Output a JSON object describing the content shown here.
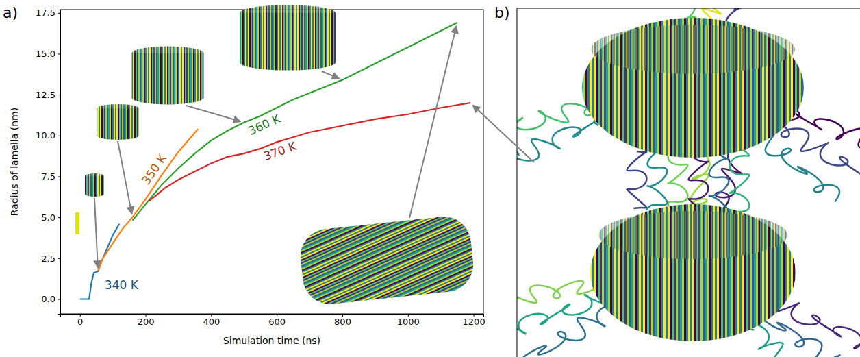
{
  "chart_data": {
    "type": "line",
    "panel_labels": [
      "a)",
      "b)"
    ],
    "x_label": "Simulation time (ns)",
    "y_label": "Radius of lamella (nm)",
    "xlim": [
      -60,
      1230
    ],
    "ylim": [
      -0.9,
      17.7
    ],
    "xticks": [
      0,
      200,
      400,
      600,
      800,
      1000,
      1200
    ],
    "yticks": [
      {
        "value": 0,
        "label": "0.0"
      },
      2.5,
      {
        "value": 5,
        "label": "5.0"
      },
      7.5,
      {
        "value": 10,
        "label": "10.0"
      },
      12.5,
      {
        "value": 15,
        "label": "15.0"
      },
      17.5
    ],
    "grid": false,
    "series": [
      {
        "name": "340 K",
        "color": "#1f77b4",
        "x": [
          0,
          28,
          35,
          42,
          55,
          70,
          85,
          100,
          120
        ],
        "values": [
          0,
          0,
          1.0,
          1.6,
          1.7,
          2.5,
          3.2,
          3.9,
          4.6
        ]
      },
      {
        "name": "350 K",
        "color": "#ff7f0e",
        "x": [
          55,
          70,
          100,
          130,
          160,
          200,
          250,
          300,
          360
        ],
        "values": [
          1.7,
          2.5,
          3.4,
          4.3,
          5.0,
          6.1,
          7.6,
          9.0,
          10.4
        ]
      },
      {
        "name": "360 K",
        "color": "#2ca02c",
        "x": [
          160,
          200,
          250,
          300,
          350,
          400,
          450,
          500,
          550,
          600,
          650,
          700,
          750,
          800,
          850,
          900,
          950,
          1000,
          1050,
          1100,
          1150
        ],
        "values": [
          4.8,
          5.8,
          7.0,
          8.0,
          8.9,
          9.7,
          10.3,
          10.8,
          11.2,
          11.7,
          12.2,
          12.6,
          13.0,
          13.4,
          13.9,
          14.4,
          14.9,
          15.4,
          15.9,
          16.4,
          16.9
        ]
      },
      {
        "name": "370 K",
        "color": "#d62728",
        "x": [
          210,
          230,
          260,
          300,
          350,
          400,
          450,
          500,
          550,
          600,
          650,
          700,
          750,
          800,
          900,
          1000,
          1100,
          1190
        ],
        "values": [
          6.0,
          6.3,
          6.8,
          7.3,
          7.8,
          8.3,
          8.7,
          8.9,
          9.2,
          9.6,
          9.9,
          10.2,
          10.4,
          10.6,
          11.0,
          11.3,
          11.7,
          12.0
        ]
      }
    ]
  }
}
